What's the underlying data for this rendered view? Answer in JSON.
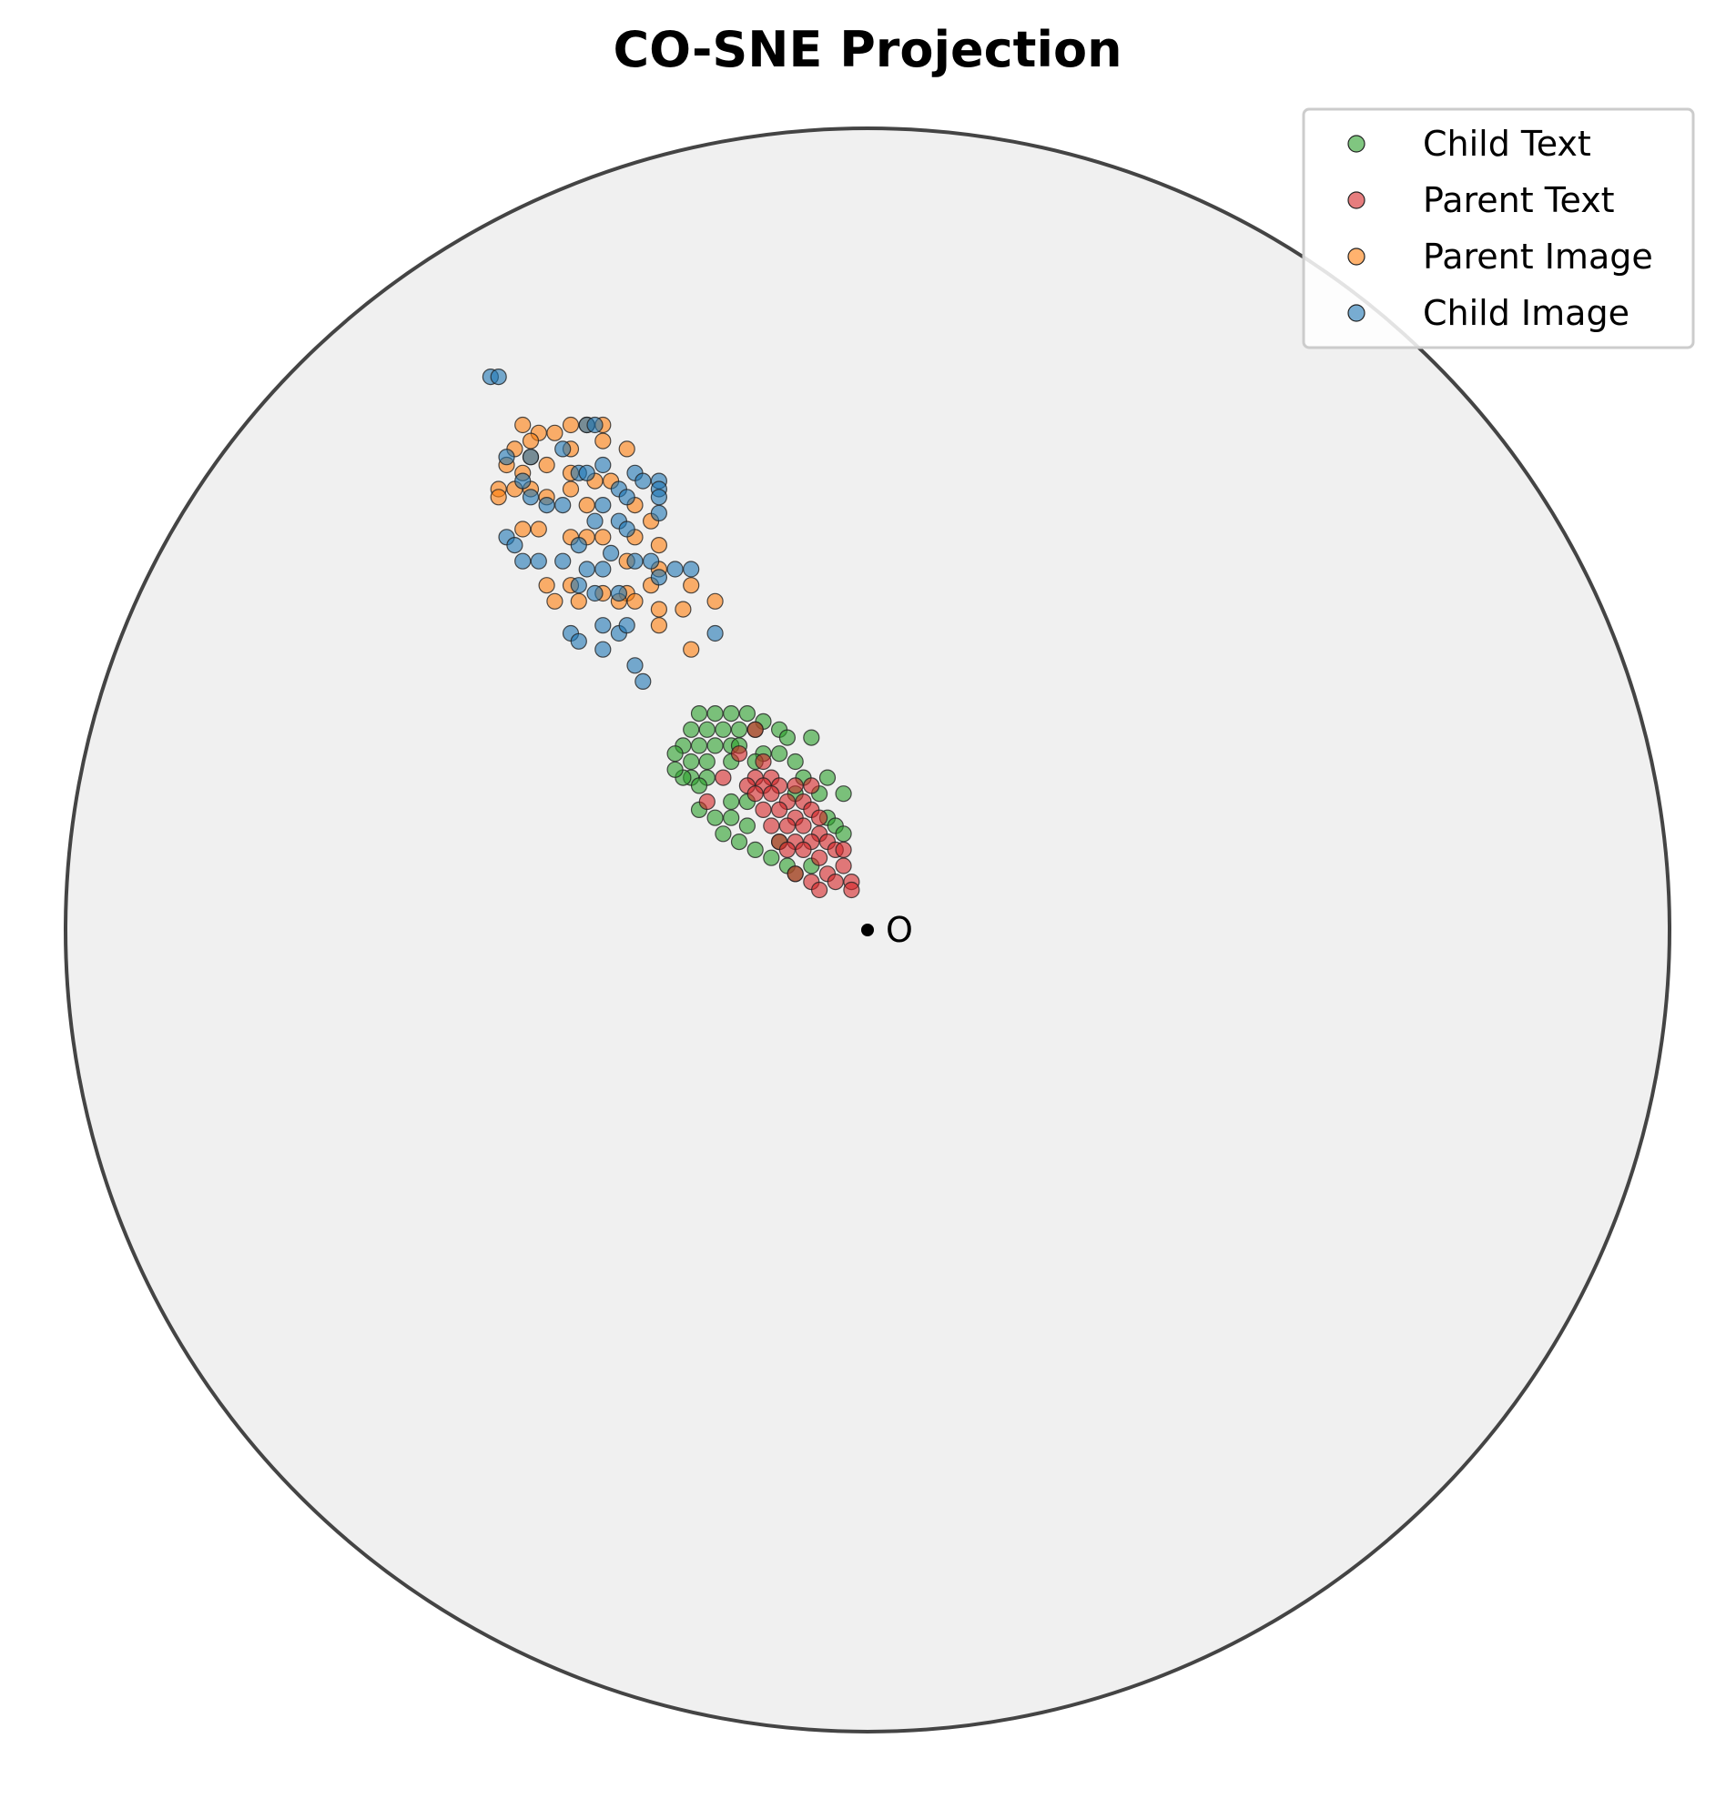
{
  "chart_data": {
    "type": "scatter",
    "title": "CO-SNE Projection",
    "xlabel": "",
    "ylabel": "",
    "xlim": [
      -1,
      1
    ],
    "ylim": [
      -1,
      1
    ],
    "grid": false,
    "boundary": "unit-disk",
    "legend_position": "top-right",
    "origin_label": "O",
    "colors": {
      "child_text": "#2ca02c",
      "parent_text": "#d62728",
      "parent_image": "#ff7f0e",
      "child_image": "#1f77b4",
      "disk_fill": "#f0f0f0",
      "disk_edge": "#444444"
    },
    "series": [
      {
        "name": "Child Text",
        "color": "#2ca02c",
        "points": [
          [
            -0.21,
            0.27
          ],
          [
            -0.19,
            0.27
          ],
          [
            -0.17,
            0.27
          ],
          [
            -0.15,
            0.27
          ],
          [
            -0.13,
            0.26
          ],
          [
            -0.11,
            0.25
          ],
          [
            -0.22,
            0.25
          ],
          [
            -0.2,
            0.25
          ],
          [
            -0.18,
            0.25
          ],
          [
            -0.16,
            0.25
          ],
          [
            -0.14,
            0.25
          ],
          [
            -0.23,
            0.23
          ],
          [
            -0.21,
            0.23
          ],
          [
            -0.19,
            0.23
          ],
          [
            -0.17,
            0.23
          ],
          [
            -0.1,
            0.24
          ],
          [
            -0.07,
            0.24
          ],
          [
            -0.24,
            0.22
          ],
          [
            -0.22,
            0.21
          ],
          [
            -0.2,
            0.21
          ],
          [
            -0.16,
            0.23
          ],
          [
            -0.13,
            0.22
          ],
          [
            -0.11,
            0.22
          ],
          [
            -0.22,
            0.19
          ],
          [
            -0.23,
            0.19
          ],
          [
            -0.2,
            0.19
          ],
          [
            -0.17,
            0.21
          ],
          [
            -0.14,
            0.21
          ],
          [
            -0.09,
            0.21
          ],
          [
            -0.24,
            0.2
          ],
          [
            -0.21,
            0.18
          ],
          [
            -0.08,
            0.19
          ],
          [
            -0.05,
            0.19
          ],
          [
            -0.09,
            0.17
          ],
          [
            -0.06,
            0.17
          ],
          [
            -0.03,
            0.17
          ],
          [
            -0.17,
            0.16
          ],
          [
            -0.15,
            0.16
          ],
          [
            -0.21,
            0.15
          ],
          [
            -0.19,
            0.14
          ],
          [
            -0.15,
            0.13
          ],
          [
            -0.17,
            0.14
          ],
          [
            -0.05,
            0.14
          ],
          [
            -0.04,
            0.13
          ],
          [
            -0.03,
            0.12
          ],
          [
            -0.16,
            0.11
          ],
          [
            -0.11,
            0.11
          ],
          [
            -0.14,
            0.1
          ],
          [
            -0.1,
            0.08
          ],
          [
            -0.09,
            0.07
          ],
          [
            -0.07,
            0.08
          ],
          [
            -0.18,
            0.12
          ],
          [
            -0.12,
            0.09
          ]
        ]
      },
      {
        "name": "Parent Text",
        "color": "#d62728",
        "points": [
          [
            -0.14,
            0.25
          ],
          [
            -0.16,
            0.22
          ],
          [
            -0.13,
            0.21
          ],
          [
            -0.12,
            0.19
          ],
          [
            -0.14,
            0.19
          ],
          [
            -0.18,
            0.19
          ],
          [
            -0.15,
            0.18
          ],
          [
            -0.13,
            0.18
          ],
          [
            -0.11,
            0.18
          ],
          [
            -0.09,
            0.18
          ],
          [
            -0.07,
            0.18
          ],
          [
            -0.14,
            0.17
          ],
          [
            -0.12,
            0.17
          ],
          [
            -0.1,
            0.16
          ],
          [
            -0.08,
            0.16
          ],
          [
            -0.2,
            0.16
          ],
          [
            -0.13,
            0.15
          ],
          [
            -0.11,
            0.15
          ],
          [
            -0.09,
            0.14
          ],
          [
            -0.07,
            0.15
          ],
          [
            -0.06,
            0.14
          ],
          [
            -0.12,
            0.13
          ],
          [
            -0.1,
            0.13
          ],
          [
            -0.08,
            0.13
          ],
          [
            -0.06,
            0.12
          ],
          [
            -0.11,
            0.11
          ],
          [
            -0.09,
            0.11
          ],
          [
            -0.07,
            0.11
          ],
          [
            -0.05,
            0.11
          ],
          [
            -0.04,
            0.1
          ],
          [
            -0.1,
            0.1
          ],
          [
            -0.08,
            0.1
          ],
          [
            -0.06,
            0.09
          ],
          [
            -0.03,
            0.1
          ],
          [
            -0.09,
            0.07
          ],
          [
            -0.07,
            0.06
          ],
          [
            -0.05,
            0.07
          ],
          [
            -0.03,
            0.08
          ],
          [
            -0.04,
            0.06
          ],
          [
            -0.02,
            0.06
          ],
          [
            -0.02,
            0.05
          ],
          [
            -0.06,
            0.05
          ]
        ]
      },
      {
        "name": "Parent Image",
        "color": "#ff7f0e",
        "points": [
          [
            -0.43,
            0.63
          ],
          [
            -0.41,
            0.62
          ],
          [
            -0.39,
            0.62
          ],
          [
            -0.37,
            0.63
          ],
          [
            -0.35,
            0.63
          ],
          [
            -0.33,
            0.63
          ],
          [
            -0.42,
            0.61
          ],
          [
            -0.44,
            0.6
          ],
          [
            -0.42,
            0.59
          ],
          [
            -0.37,
            0.6
          ],
          [
            -0.33,
            0.61
          ],
          [
            -0.3,
            0.6
          ],
          [
            -0.45,
            0.58
          ],
          [
            -0.43,
            0.57
          ],
          [
            -0.4,
            0.58
          ],
          [
            -0.37,
            0.57
          ],
          [
            -0.34,
            0.56
          ],
          [
            -0.46,
            0.55
          ],
          [
            -0.44,
            0.55
          ],
          [
            -0.42,
            0.55
          ],
          [
            -0.37,
            0.55
          ],
          [
            -0.32,
            0.56
          ],
          [
            -0.46,
            0.54
          ],
          [
            -0.4,
            0.54
          ],
          [
            -0.35,
            0.53
          ],
          [
            -0.29,
            0.53
          ],
          [
            -0.27,
            0.51
          ],
          [
            -0.43,
            0.5
          ],
          [
            -0.41,
            0.5
          ],
          [
            -0.37,
            0.49
          ],
          [
            -0.35,
            0.49
          ],
          [
            -0.33,
            0.49
          ],
          [
            -0.29,
            0.49
          ],
          [
            -0.26,
            0.48
          ],
          [
            -0.3,
            0.46
          ],
          [
            -0.26,
            0.45
          ],
          [
            -0.4,
            0.43
          ],
          [
            -0.37,
            0.43
          ],
          [
            -0.33,
            0.42
          ],
          [
            -0.3,
            0.42
          ],
          [
            -0.27,
            0.43
          ],
          [
            -0.22,
            0.43
          ],
          [
            -0.39,
            0.41
          ],
          [
            -0.36,
            0.41
          ],
          [
            -0.31,
            0.41
          ],
          [
            -0.29,
            0.41
          ],
          [
            -0.26,
            0.4
          ],
          [
            -0.23,
            0.4
          ],
          [
            -0.19,
            0.41
          ],
          [
            -0.26,
            0.38
          ],
          [
            -0.22,
            0.35
          ]
        ]
      },
      {
        "name": "Child Image",
        "color": "#1f77b4",
        "points": [
          [
            -0.47,
            0.69
          ],
          [
            -0.46,
            0.69
          ],
          [
            -0.35,
            0.63
          ],
          [
            -0.34,
            0.63
          ],
          [
            -0.38,
            0.6
          ],
          [
            -0.33,
            0.58
          ],
          [
            -0.36,
            0.57
          ],
          [
            -0.35,
            0.57
          ],
          [
            -0.45,
            0.59
          ],
          [
            -0.42,
            0.59
          ],
          [
            -0.29,
            0.57
          ],
          [
            -0.28,
            0.56
          ],
          [
            -0.26,
            0.56
          ],
          [
            -0.26,
            0.55
          ],
          [
            -0.43,
            0.56
          ],
          [
            -0.42,
            0.54
          ],
          [
            -0.4,
            0.53
          ],
          [
            -0.38,
            0.53
          ],
          [
            -0.31,
            0.55
          ],
          [
            -0.33,
            0.53
          ],
          [
            -0.3,
            0.54
          ],
          [
            -0.26,
            0.54
          ],
          [
            -0.26,
            0.52
          ],
          [
            -0.31,
            0.51
          ],
          [
            -0.34,
            0.51
          ],
          [
            -0.45,
            0.49
          ],
          [
            -0.44,
            0.48
          ],
          [
            -0.36,
            0.48
          ],
          [
            -0.32,
            0.47
          ],
          [
            -0.3,
            0.5
          ],
          [
            -0.43,
            0.46
          ],
          [
            -0.41,
            0.46
          ],
          [
            -0.38,
            0.46
          ],
          [
            -0.35,
            0.45
          ],
          [
            -0.33,
            0.45
          ],
          [
            -0.29,
            0.46
          ],
          [
            -0.27,
            0.46
          ],
          [
            -0.24,
            0.45
          ],
          [
            -0.22,
            0.45
          ],
          [
            -0.26,
            0.44
          ],
          [
            -0.36,
            0.43
          ],
          [
            -0.34,
            0.42
          ],
          [
            -0.31,
            0.42
          ],
          [
            -0.37,
            0.37
          ],
          [
            -0.36,
            0.36
          ],
          [
            -0.33,
            0.38
          ],
          [
            -0.31,
            0.37
          ],
          [
            -0.33,
            0.35
          ],
          [
            -0.3,
            0.38
          ],
          [
            -0.19,
            0.37
          ],
          [
            -0.29,
            0.33
          ],
          [
            -0.28,
            0.31
          ]
        ]
      }
    ]
  }
}
